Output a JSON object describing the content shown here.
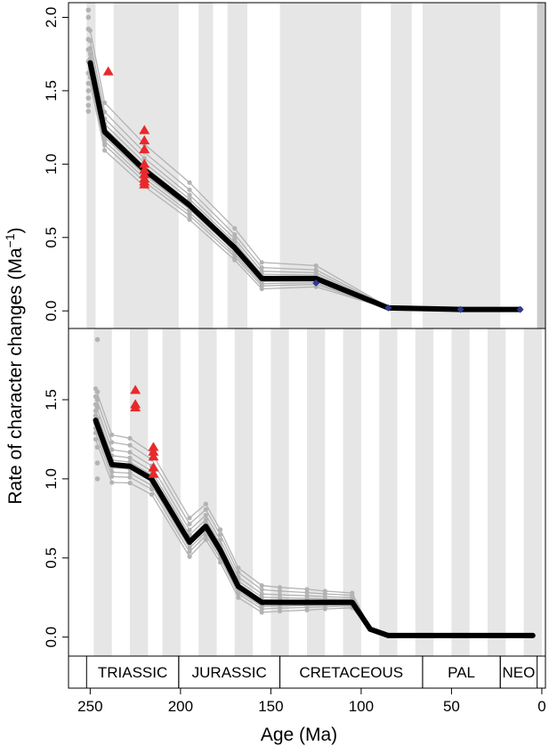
{
  "chart_data": {
    "type": "line",
    "xlabel": "Age (Ma)",
    "ylabel": "Rate of character changes (Ma",
    "ylabel_superscript": "−1",
    "ylabel_close": ")",
    "xlim": [
      262,
      -2
    ],
    "x_ticks": [
      250,
      200,
      150,
      100,
      50,
      0
    ],
    "x_tick_labels": [
      "250",
      "200",
      "150",
      "100",
      "50",
      "0"
    ],
    "colors": {
      "mean_line": "#000000",
      "replicates": "#b3b3b3",
      "triangles": "#e8292b",
      "diamonds": "#2e3a8c",
      "band": "#e6e6e6",
      "neogene_band": "#cccccc"
    },
    "periods": [
      {
        "label": "TRIASSIC",
        "start": 252,
        "end": 201
      },
      {
        "label": "JURASSIC",
        "start": 201,
        "end": 145
      },
      {
        "label": "CRETACEOUS",
        "start": 145,
        "end": 66
      },
      {
        "label": "PAL",
        "start": 66,
        "end": 23
      },
      {
        "label": "NEO",
        "start": 23,
        "end": 2.6
      }
    ],
    "panels": [
      {
        "name": "top",
        "ylim": [
          -0.12,
          2.1
        ],
        "y_ticks": [
          0.0,
          0.5,
          1.0,
          1.5,
          2.0
        ],
        "y_tick_labels": [
          "0.0",
          "0.5",
          "1.0",
          "1.5",
          "2.0"
        ],
        "bands": [
          [
            252,
            247
          ],
          [
            237,
            201
          ],
          [
            190,
            182
          ],
          [
            174,
            163
          ],
          [
            145,
            100
          ],
          [
            83.6,
            72
          ],
          [
            66,
            23
          ],
          [
            2.6,
            0
          ]
        ],
        "dark_bands": [
          [
            2.6,
            -2
          ]
        ],
        "mean": {
          "x": [
            250,
            242,
            220,
            195,
            170,
            155,
            125,
            85,
            45,
            12
          ],
          "y": [
            1.69,
            1.22,
            0.96,
            0.72,
            0.43,
            0.22,
            0.22,
            0.02,
            0.01,
            0.01
          ]
        },
        "replicates_offsets": [
          -0.14,
          -0.1,
          -0.07,
          -0.04,
          -0.02,
          0.0,
          0.03,
          0.06,
          0.1,
          0.15,
          0.22
        ],
        "start_spread": {
          "x": 251,
          "y": [
            1.36,
            1.4,
            1.45,
            1.5,
            1.55,
            1.62,
            1.7,
            1.78,
            1.85,
            1.92,
            2.0,
            2.05
          ]
        },
        "triangles": {
          "x": [
            240,
            220,
            220,
            220,
            220,
            220,
            220,
            220,
            220,
            220
          ],
          "y": [
            1.63,
            1.23,
            1.16,
            1.1,
            1.0,
            0.96,
            0.93,
            0.9,
            0.88,
            0.86
          ]
        },
        "diamonds": {
          "x": [
            125,
            85,
            45,
            12
          ],
          "y": [
            0.19,
            0.02,
            0.01,
            0.01
          ]
        }
      },
      {
        "name": "bottom",
        "ylim": [
          -0.12,
          1.95
        ],
        "y_ticks": [
          0.0,
          0.5,
          1.0,
          1.5
        ],
        "y_tick_labels": [
          "0.0",
          "0.5",
          "1.0",
          "1.5"
        ],
        "bands": [
          [
            248,
            238
          ],
          [
            228,
            218
          ],
          [
            210,
            200
          ],
          [
            190,
            180
          ],
          [
            170,
            160
          ],
          [
            150,
            140
          ],
          [
            130,
            120
          ],
          [
            110,
            100
          ],
          [
            90,
            80
          ],
          [
            70,
            60
          ],
          [
            50,
            40
          ],
          [
            30,
            20
          ],
          [
            10,
            0
          ]
        ],
        "dark_bands": [],
        "mean": {
          "x": [
            247,
            238,
            228,
            216,
            195,
            186,
            178,
            168,
            155,
            145,
            130,
            120,
            105,
            95,
            85,
            45,
            5
          ],
          "y": [
            1.37,
            1.09,
            1.08,
            1.0,
            0.6,
            0.7,
            0.55,
            0.32,
            0.22,
            0.22,
            0.22,
            0.22,
            0.22,
            0.05,
            0.01,
            0.01,
            0.01
          ]
        },
        "replicates_offsets": [
          -0.12,
          -0.08,
          -0.05,
          -0.02,
          0.0,
          0.03,
          0.06,
          0.1,
          0.15,
          0.2
        ],
        "start_spread": {
          "x": 246,
          "y": [
            1.0,
            1.1,
            1.2,
            1.3,
            1.38,
            1.45,
            1.5,
            1.55,
            1.88
          ]
        },
        "triangles": {
          "x": [
            225,
            225,
            225,
            215,
            215,
            215,
            215,
            215
          ],
          "y": [
            1.56,
            1.47,
            1.45,
            1.2,
            1.17,
            1.14,
            1.07,
            1.03
          ]
        },
        "diamonds": {
          "x": [],
          "y": []
        }
      }
    ]
  }
}
